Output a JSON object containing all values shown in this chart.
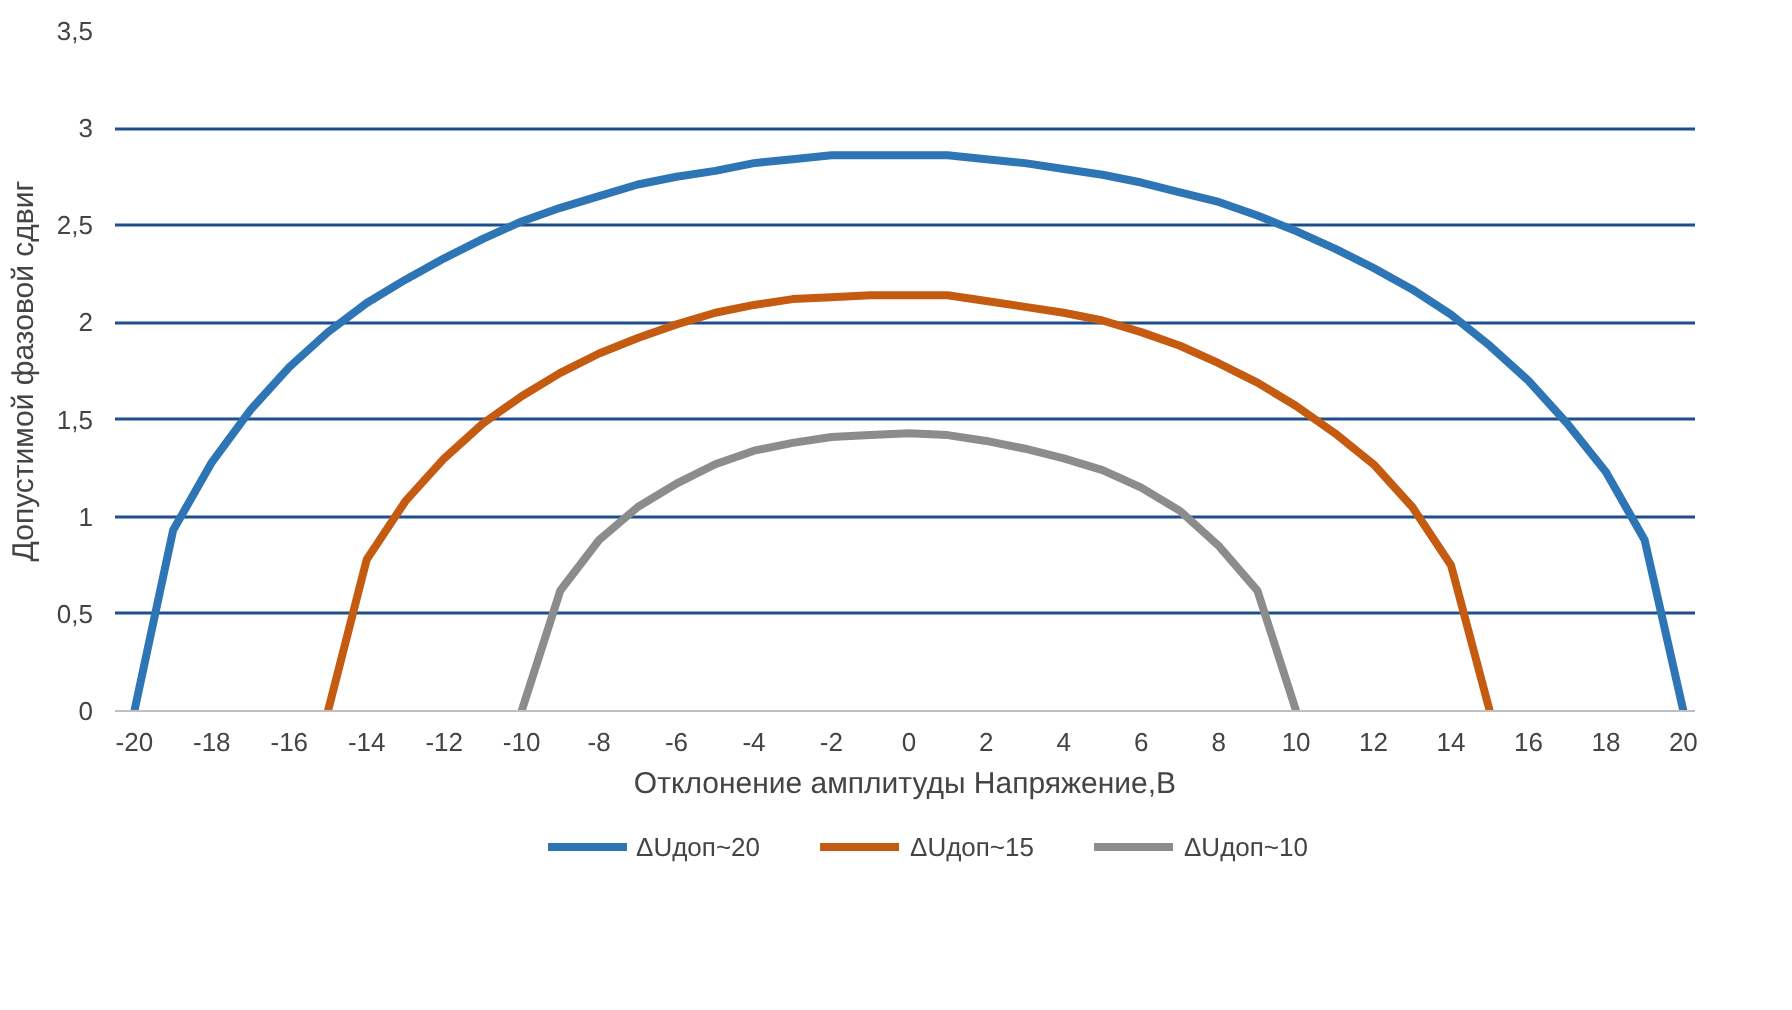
{
  "chart_data": {
    "type": "line",
    "xlabel": "Отклонение амплитуды Напряжение,В",
    "ylabel": "Допустимой фазовой сдвиг",
    "x": [
      -20,
      -19,
      -18,
      -17,
      -16,
      -15,
      -14,
      -13,
      -12,
      -11,
      -10,
      -9,
      -8,
      -7,
      -6,
      -5,
      -4,
      -3,
      -2,
      -1,
      0,
      1,
      2,
      3,
      4,
      5,
      6,
      7,
      8,
      9,
      10,
      11,
      12,
      13,
      14,
      15,
      16,
      17,
      18,
      19,
      20
    ],
    "series": [
      {
        "name": "ΔUдоп~20",
        "color": "#2e75b6",
        "values": [
          0,
          0.93,
          1.28,
          1.55,
          1.77,
          1.95,
          2.1,
          2.22,
          2.33,
          2.43,
          2.52,
          2.59,
          2.65,
          2.71,
          2.75,
          2.78,
          2.82,
          2.84,
          2.86,
          2.86,
          2.86,
          2.86,
          2.84,
          2.82,
          2.79,
          2.76,
          2.72,
          2.67,
          2.62,
          2.55,
          2.47,
          2.38,
          2.28,
          2.17,
          2.04,
          1.88,
          1.7,
          1.48,
          1.23,
          0.88,
          0
        ]
      },
      {
        "name": "ΔUдоп~15",
        "color": "#c55a11",
        "values": [
          null,
          null,
          null,
          null,
          null,
          0,
          0.78,
          1.08,
          1.3,
          1.48,
          1.62,
          1.74,
          1.84,
          1.92,
          1.99,
          2.05,
          2.09,
          2.12,
          2.13,
          2.14,
          2.14,
          2.14,
          2.11,
          2.08,
          2.05,
          2.01,
          1.95,
          1.88,
          1.79,
          1.69,
          1.57,
          1.43,
          1.27,
          1.05,
          0.75,
          0,
          null,
          null,
          null,
          null,
          null
        ]
      },
      {
        "name": "ΔUдоп~10",
        "color": "#8c8c8c",
        "values": [
          null,
          null,
          null,
          null,
          null,
          null,
          null,
          null,
          null,
          null,
          0,
          0.62,
          0.88,
          1.05,
          1.17,
          1.27,
          1.34,
          1.38,
          1.41,
          1.42,
          1.43,
          1.42,
          1.39,
          1.35,
          1.3,
          1.24,
          1.15,
          1.03,
          0.85,
          0.62,
          0,
          null,
          null,
          null,
          null,
          null,
          null,
          null,
          null,
          null,
          null
        ]
      }
    ],
    "xlim": [
      -20.5,
      20.3
    ],
    "xticks": [
      -20,
      -18,
      -16,
      -14,
      -12,
      -10,
      -8,
      -6,
      -4,
      -2,
      0,
      2,
      4,
      6,
      8,
      10,
      12,
      14,
      16,
      18,
      20
    ],
    "ylim": [
      0,
      3.5
    ],
    "yticks": [
      0,
      {
        "value": 0.5,
        "label": "0,5"
      },
      1,
      {
        "value": 1.5,
        "label": "1,5"
      },
      2,
      {
        "value": 2.5,
        "label": "2,5"
      },
      3,
      {
        "value": 3.5,
        "label": "3,5"
      }
    ],
    "grid": "y",
    "legend": "bottom",
    "marker": "none",
    "line_style": "solid"
  }
}
